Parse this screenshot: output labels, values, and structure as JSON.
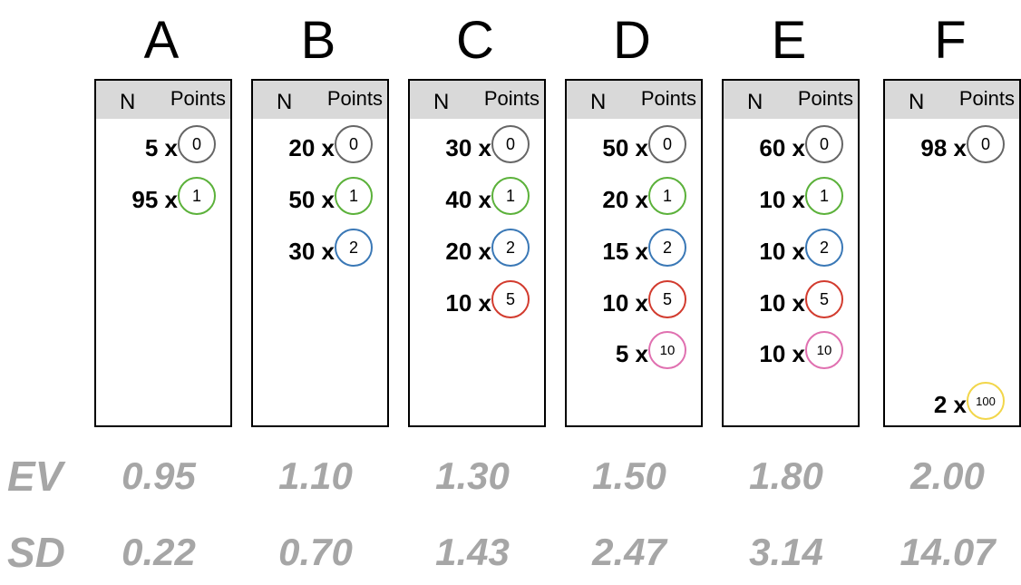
{
  "header": {
    "n_label": "N",
    "points_label": "Points"
  },
  "row_labels": {
    "ev": "EV",
    "sd": "SD"
  },
  "chip_colors": {
    "0": "#666666",
    "1": "#5bb13a",
    "2": "#3a78b6",
    "5": "#d23b2e",
    "10": "#e070b0",
    "100": "#f2d64a"
  },
  "options": [
    {
      "letter": "A",
      "ev": "0.95",
      "sd": "0.22",
      "rows": [
        {
          "count": "5 x",
          "points": "0"
        },
        {
          "count": "95 x",
          "points": "1"
        }
      ]
    },
    {
      "letter": "B",
      "ev": "1.10",
      "sd": "0.70",
      "rows": [
        {
          "count": "20 x",
          "points": "0"
        },
        {
          "count": "50 x",
          "points": "1"
        },
        {
          "count": "30 x",
          "points": "2"
        }
      ]
    },
    {
      "letter": "C",
      "ev": "1.30",
      "sd": "1.43",
      "rows": [
        {
          "count": "30 x",
          "points": "0"
        },
        {
          "count": "40 x",
          "points": "1"
        },
        {
          "count": "20 x",
          "points": "2"
        },
        {
          "count": "10 x",
          "points": "5"
        }
      ]
    },
    {
      "letter": "D",
      "ev": "1.50",
      "sd": "2.47",
      "rows": [
        {
          "count": "50 x",
          "points": "0"
        },
        {
          "count": "20 x",
          "points": "1"
        },
        {
          "count": "15 x",
          "points": "2"
        },
        {
          "count": "10 x",
          "points": "5"
        },
        {
          "count": "5 x",
          "points": "10"
        }
      ]
    },
    {
      "letter": "E",
      "ev": "1.80",
      "sd": "3.14",
      "rows": [
        {
          "count": "60 x",
          "points": "0"
        },
        {
          "count": "10 x",
          "points": "1"
        },
        {
          "count": "10 x",
          "points": "2"
        },
        {
          "count": "10 x",
          "points": "5"
        },
        {
          "count": "10 x",
          "points": "10"
        }
      ]
    },
    {
      "letter": "F",
      "ev": "2.00",
      "sd": "14.07",
      "rows": [
        {
          "count": "98 x",
          "points": "0"
        },
        {
          "count": "2 x",
          "points": "100",
          "at_bottom": true
        }
      ]
    }
  ]
}
